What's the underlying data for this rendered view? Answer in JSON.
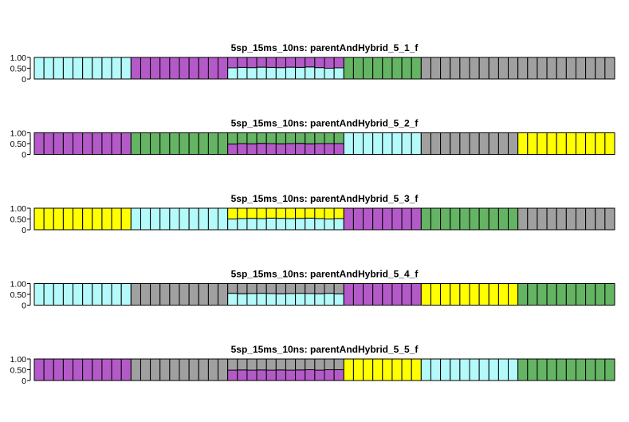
{
  "colors": {
    "cyan": "#b4fafa",
    "purple": "#b45ac8",
    "green": "#64b464",
    "gray": "#a0a0a0",
    "yellow": "#ffff00",
    "border": "#000000"
  },
  "chart_data": [
    {
      "type": "bar",
      "stacked": true,
      "title": "5sp_15ms_10ns: parentAndHybrid_5_1_f",
      "yticks": [
        "1.00",
        "0.50",
        "0"
      ],
      "ylim": [
        0,
        1
      ],
      "n_individuals": 60,
      "groups": [
        {
          "type": "pure",
          "count": 10,
          "color": "cyan"
        },
        {
          "type": "pure",
          "count": 10,
          "color": "purple"
        },
        {
          "type": "hybrid",
          "count": 10,
          "top": "purple",
          "bottom": "cyan",
          "bottom_fraction": [
            0.52,
            0.54,
            0.53,
            0.55,
            0.54,
            0.53,
            0.55,
            0.54,
            0.56,
            0.53
          ]
        },
        {
          "type": "hybrid",
          "count": 1,
          "top": "purple",
          "bottom": "cyan",
          "bottom_fraction": [
            0.5
          ]
        },
        {
          "type": "hybrid",
          "count": 1,
          "top": "purple",
          "bottom": "cyan",
          "bottom_fraction": [
            0.52
          ]
        },
        {
          "type": "pure",
          "count": 8,
          "color": "green"
        },
        {
          "type": "pure",
          "count": 20,
          "color": "gray"
        }
      ]
    },
    {
      "type": "bar",
      "stacked": true,
      "title": "5sp_15ms_10ns: parentAndHybrid_5_2_f",
      "yticks": [
        "1.00",
        "0.50",
        "0"
      ],
      "ylim": [
        0,
        1
      ],
      "n_individuals": 60,
      "groups": [
        {
          "type": "pure",
          "count": 10,
          "color": "purple"
        },
        {
          "type": "pure",
          "count": 10,
          "color": "green"
        },
        {
          "type": "hybrid",
          "count": 10,
          "top": "green",
          "bottom": "purple",
          "bottom_fraction": [
            0.48,
            0.5,
            0.49,
            0.51,
            0.5,
            0.49,
            0.5,
            0.51,
            0.49,
            0.5
          ]
        },
        {
          "type": "hybrid",
          "count": 1,
          "top": "green",
          "bottom": "purple",
          "bottom_fraction": [
            0.5
          ]
        },
        {
          "type": "hybrid",
          "count": 1,
          "top": "green",
          "bottom": "purple",
          "bottom_fraction": [
            0.5
          ]
        },
        {
          "type": "pure",
          "count": 8,
          "color": "cyan"
        },
        {
          "type": "pure",
          "count": 10,
          "color": "gray"
        },
        {
          "type": "pure",
          "count": 10,
          "color": "yellow"
        }
      ]
    },
    {
      "type": "bar",
      "stacked": true,
      "title": "5sp_15ms_10ns: parentAndHybrid_5_3_f",
      "yticks": [
        "1.00",
        "0.50",
        "0"
      ],
      "ylim": [
        0,
        1
      ],
      "n_individuals": 60,
      "groups": [
        {
          "type": "pure",
          "count": 10,
          "color": "yellow"
        },
        {
          "type": "pure",
          "count": 10,
          "color": "cyan"
        },
        {
          "type": "hybrid",
          "count": 10,
          "top": "yellow",
          "bottom": "cyan",
          "bottom_fraction": [
            0.5,
            0.52,
            0.53,
            0.52,
            0.54,
            0.53,
            0.52,
            0.53,
            0.54,
            0.52
          ]
        },
        {
          "type": "hybrid",
          "count": 1,
          "top": "yellow",
          "bottom": "cyan",
          "bottom_fraction": [
            0.5
          ]
        },
        {
          "type": "hybrid",
          "count": 1,
          "top": "yellow",
          "bottom": "cyan",
          "bottom_fraction": [
            0.52
          ]
        },
        {
          "type": "pure",
          "count": 8,
          "color": "purple"
        },
        {
          "type": "pure",
          "count": 10,
          "color": "green"
        },
        {
          "type": "pure",
          "count": 10,
          "color": "gray"
        }
      ]
    },
    {
      "type": "bar",
      "stacked": true,
      "title": "5sp_15ms_10ns: parentAndHybrid_5_4_f",
      "yticks": [
        "1.00",
        "0.50",
        "0"
      ],
      "ylim": [
        0,
        1
      ],
      "n_individuals": 60,
      "groups": [
        {
          "type": "pure",
          "count": 10,
          "color": "cyan"
        },
        {
          "type": "pure",
          "count": 10,
          "color": "gray"
        },
        {
          "type": "hybrid",
          "count": 10,
          "top": "gray",
          "bottom": "cyan",
          "bottom_fraction": [
            0.55,
            0.53,
            0.54,
            0.55,
            0.54,
            0.53,
            0.54,
            0.55,
            0.54,
            0.53
          ]
        },
        {
          "type": "hybrid",
          "count": 1,
          "top": "gray",
          "bottom": "cyan",
          "bottom_fraction": [
            0.55
          ]
        },
        {
          "type": "hybrid",
          "count": 1,
          "top": "gray",
          "bottom": "cyan",
          "bottom_fraction": [
            0.52
          ]
        },
        {
          "type": "pure",
          "count": 8,
          "color": "purple"
        },
        {
          "type": "pure",
          "count": 10,
          "color": "yellow"
        },
        {
          "type": "pure",
          "count": 10,
          "color": "green"
        }
      ]
    },
    {
      "type": "bar",
      "stacked": true,
      "title": "5sp_15ms_10ns: parentAndHybrid_5_5_f",
      "yticks": [
        "1.00",
        "0.50",
        "0"
      ],
      "ylim": [
        0,
        1
      ],
      "n_individuals": 60,
      "groups": [
        {
          "type": "pure",
          "count": 10,
          "color": "purple"
        },
        {
          "type": "pure",
          "count": 10,
          "color": "gray"
        },
        {
          "type": "hybrid",
          "count": 10,
          "top": "gray",
          "bottom": "purple",
          "bottom_fraction": [
            0.48,
            0.49,
            0.48,
            0.49,
            0.48,
            0.49,
            0.48,
            0.49,
            0.5,
            0.48
          ]
        },
        {
          "type": "hybrid",
          "count": 1,
          "top": "gray",
          "bottom": "purple",
          "bottom_fraction": [
            0.5
          ]
        },
        {
          "type": "hybrid",
          "count": 1,
          "top": "gray",
          "bottom": "purple",
          "bottom_fraction": [
            0.5
          ]
        },
        {
          "type": "pure",
          "count": 8,
          "color": "yellow"
        },
        {
          "type": "pure",
          "count": 10,
          "color": "cyan"
        },
        {
          "type": "pure",
          "count": 10,
          "color": "green"
        }
      ]
    }
  ]
}
